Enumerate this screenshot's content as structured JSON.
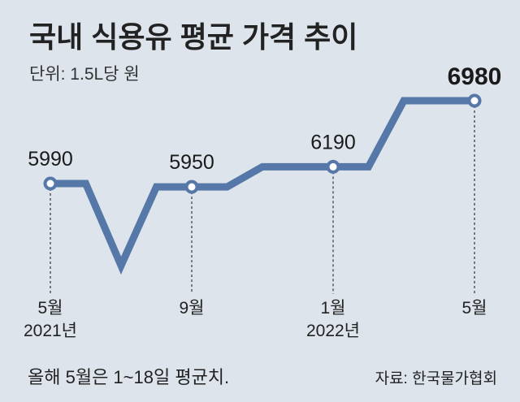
{
  "chart_data": {
    "type": "line",
    "title": "국내 식용유 평균 가격 추이",
    "subtitle": "단위: 1.5L당 원",
    "x": [
      "2021-05",
      "2021-06",
      "2021-07",
      "2021-08",
      "2021-09",
      "2021-10",
      "2021-11",
      "2021-12",
      "2022-01",
      "2022-02",
      "2022-03",
      "2022-04",
      "2022-05"
    ],
    "values": [
      5990,
      5990,
      5010,
      5950,
      5950,
      5950,
      6190,
      6190,
      6190,
      6190,
      6980,
      6980,
      6980
    ],
    "data_labels": [
      {
        "index": 0,
        "text": "5990"
      },
      {
        "index": 4,
        "text": "5950"
      },
      {
        "index": 8,
        "text": "6190"
      },
      {
        "index": 12,
        "text": "6980"
      }
    ],
    "tick_labels": [
      {
        "index": 0,
        "line1": "5월",
        "line2": "2021년"
      },
      {
        "index": 4,
        "line1": "9월",
        "line2": ""
      },
      {
        "index": 8,
        "line1": "1월",
        "line2": "2022년"
      },
      {
        "index": 12,
        "line1": "5월",
        "line2": ""
      }
    ],
    "grid": false,
    "line_color": "#5578a8",
    "background": "#dde4ec"
  },
  "footer": {
    "note": "올해 5월은 1~18일 평균치.",
    "source": "자료: 한국물가협회"
  }
}
